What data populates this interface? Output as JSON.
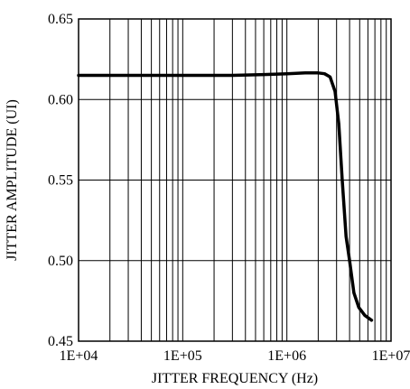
{
  "chart_data": {
    "type": "line",
    "title": "",
    "xlabel": "JITTER FREQUENCY (Hz)",
    "ylabel": "JITTER AMPLITUDE (UI)",
    "x_scale": "log",
    "xlim": [
      10000,
      10000000
    ],
    "ylim": [
      0.45,
      0.65
    ],
    "x_ticks": [
      {
        "value": 10000,
        "label": "1E+04"
      },
      {
        "value": 100000,
        "label": "1E+05"
      },
      {
        "value": 1000000,
        "label": "1E+06"
      },
      {
        "value": 10000000,
        "label": "1E+07"
      }
    ],
    "y_ticks": [
      {
        "value": 0.45,
        "label": "0.45"
      },
      {
        "value": 0.5,
        "label": "0.50"
      },
      {
        "value": 0.55,
        "label": "0.55"
      },
      {
        "value": 0.6,
        "label": "0.60"
      },
      {
        "value": 0.65,
        "label": "0.65"
      }
    ],
    "grid": true,
    "legend": "none",
    "series": [
      {
        "color": "#000000",
        "x": [
          10000,
          30000,
          100000,
          300000,
          600000,
          1000000,
          1500000,
          2000000,
          2300000,
          2600000,
          2900000,
          3150000,
          3400000,
          3700000,
          4000000,
          4400000,
          4900000,
          5600000,
          6500000
        ],
        "y": [
          0.615,
          0.615,
          0.615,
          0.615,
          0.6155,
          0.616,
          0.6165,
          0.6165,
          0.616,
          0.614,
          0.605,
          0.585,
          0.55,
          0.515,
          0.5,
          0.48,
          0.471,
          0.466,
          0.463
        ]
      }
    ]
  }
}
